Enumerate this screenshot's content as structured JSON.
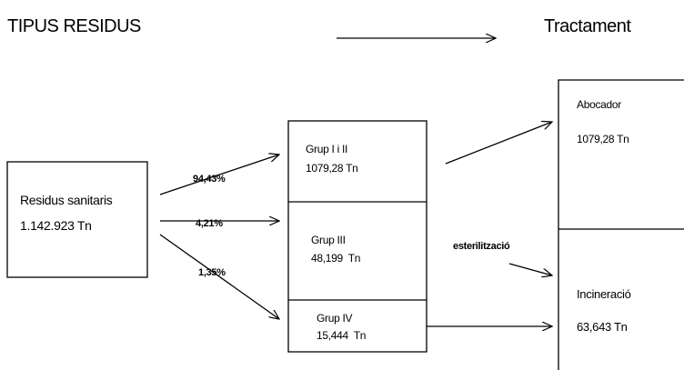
{
  "header": {
    "left": "TIPUS RESIDUS",
    "right": "Tractament"
  },
  "source": {
    "label": "Residus sanitaris",
    "amount": "1.142.923 Tn"
  },
  "flows": [
    "94,43%",
    "4,21%",
    "1,35%"
  ],
  "groups": [
    {
      "label": "Grup I i II",
      "amount": "1079,28 Tn"
    },
    {
      "label": "Grup III",
      "amount": "48,199  Tn"
    },
    {
      "label": "Grup IV",
      "amount": "15,444  Tn"
    }
  ],
  "process": "esterilització",
  "treatments": [
    {
      "label": "Abocador",
      "amount": "1079,28 Tn"
    },
    {
      "label": "Incineració",
      "amount": "63,643 Tn"
    }
  ]
}
